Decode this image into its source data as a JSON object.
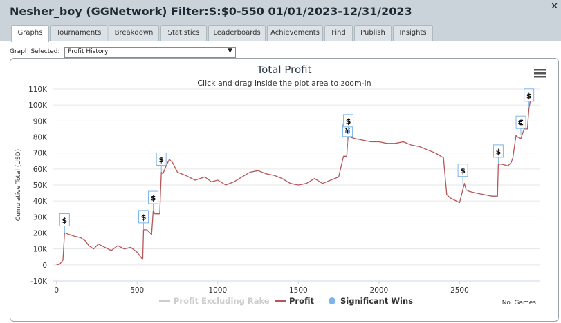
{
  "window": {
    "title": "Nesher_boy (GGNetwork) Filter:S:$0-550 01/01/2023-12/31/2023"
  },
  "tabs": [
    {
      "label": "Graphs",
      "active": true
    },
    {
      "label": "Tournaments"
    },
    {
      "label": "Breakdown"
    },
    {
      "label": "Statistics"
    },
    {
      "label": "Leaderboards"
    },
    {
      "label": "Achievements"
    },
    {
      "label": "Find"
    },
    {
      "label": "Publish"
    },
    {
      "label": "Insights"
    }
  ],
  "graph_select": {
    "label": "Graph Selected:",
    "value": "Profit History"
  },
  "icons": {
    "close": "close-x-icon",
    "menu": "hamburger-menu-icon"
  },
  "colors": {
    "profit": "#b5565a",
    "excluding_rake": "#cccccc",
    "significant": "#7cb5ec"
  },
  "chart_data": {
    "type": "line",
    "title": "Total Profit",
    "subtitle": "Click and drag inside the plot area to zoom-in",
    "xlabel": "No. Games",
    "ylabel": "Cumulative Total (USD)",
    "xlim": [
      -20,
      3000
    ],
    "ylim": [
      -10000,
      110000
    ],
    "xticks": [
      0,
      500,
      1000,
      1500,
      2000,
      2500
    ],
    "yticks": [
      -10000,
      0,
      10000,
      20000,
      30000,
      40000,
      50000,
      60000,
      70000,
      80000,
      90000,
      100000,
      110000
    ],
    "ytick_labels": [
      "-10K",
      "0",
      "10K",
      "20K",
      "30K",
      "40K",
      "50K",
      "60K",
      "70K",
      "80K",
      "90K",
      "100K",
      "110K"
    ],
    "grid": true,
    "legend": {
      "placement": "bottom-center",
      "items": [
        "Profit Excluding Rake",
        "Profit",
        "Significant Wins"
      ]
    },
    "series": [
      {
        "name": "Profit",
        "x": [
          0,
          20,
          40,
          50,
          55,
          80,
          110,
          150,
          180,
          200,
          230,
          260,
          300,
          340,
          380,
          420,
          460,
          500,
          530,
          535,
          540,
          560,
          580,
          590,
          600,
          610,
          640,
          650,
          660,
          680,
          700,
          720,
          750,
          800,
          860,
          920,
          960,
          1000,
          1050,
          1100,
          1150,
          1200,
          1250,
          1300,
          1350,
          1400,
          1450,
          1500,
          1550,
          1600,
          1650,
          1700,
          1750,
          1780,
          1800,
          1805,
          1810,
          1820,
          1850,
          1900,
          1950,
          2000,
          2050,
          2100,
          2150,
          2200,
          2250,
          2300,
          2350,
          2400,
          2420,
          2440,
          2460,
          2500,
          2530,
          2540,
          2560,
          2600,
          2650,
          2700,
          2720,
          2735,
          2740,
          2760,
          2800,
          2820,
          2830,
          2850,
          2860,
          2880,
          2900,
          2920,
          2930,
          2945
        ],
        "y": [
          0,
          500,
          3000,
          20000,
          20000,
          19000,
          18000,
          17000,
          15000,
          12000,
          10000,
          13000,
          11000,
          9000,
          12000,
          10000,
          11000,
          8000,
          4000,
          4000,
          22000,
          22000,
          20000,
          19000,
          34000,
          32000,
          32000,
          58000,
          57000,
          62000,
          66000,
          64000,
          58000,
          56000,
          53000,
          55000,
          52000,
          53000,
          50000,
          52000,
          55000,
          58000,
          59000,
          57000,
          56000,
          54000,
          51000,
          50000,
          51000,
          54000,
          51000,
          53000,
          55000,
          68000,
          68000,
          76000,
          82000,
          80000,
          79000,
          78000,
          77000,
          77000,
          76000,
          76000,
          77000,
          75000,
          74000,
          72000,
          70000,
          67000,
          44000,
          42000,
          41000,
          39000,
          51000,
          47000,
          46000,
          45000,
          44000,
          43000,
          43000,
          43000,
          63000,
          63000,
          62000,
          64000,
          67000,
          81000,
          80000,
          79000,
          85000,
          85000,
          98000,
          106000
        ]
      },
      {
        "name": "Significant Wins",
        "x": [
          50,
          540,
          600,
          650,
          1805,
          1810,
          2520,
          2740,
          2880,
          2930
        ],
        "y": [
          20000,
          22000,
          34000,
          58000,
          76000,
          82000,
          51000,
          63000,
          81000,
          98000
        ],
        "labels": [
          "$",
          "$",
          "$",
          "$",
          "¥",
          "$",
          "$",
          "$",
          "€",
          "$"
        ]
      }
    ]
  }
}
